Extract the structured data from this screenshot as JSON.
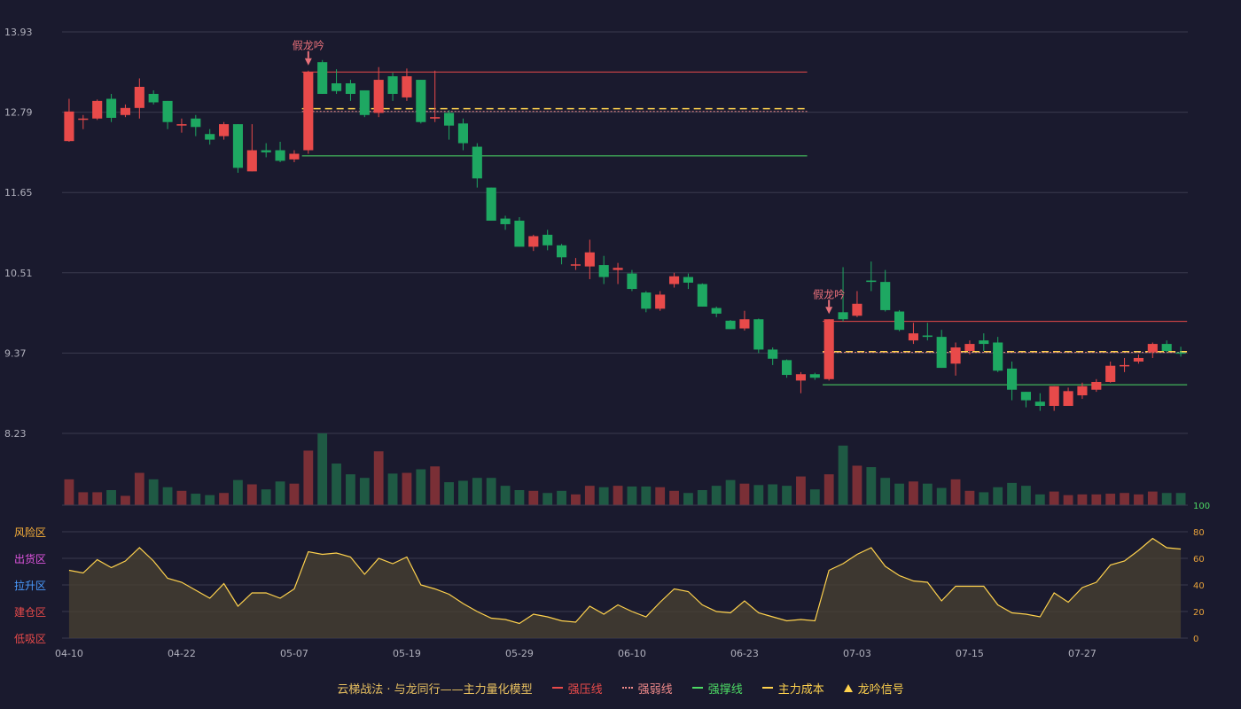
{
  "colors": {
    "bg": "#1a1a2e",
    "grid": "#3a3a4e",
    "up": "#e84a4a",
    "down": "#1ea862",
    "vol_up": "#7a2f36",
    "vol_down": "#1f5a44",
    "osc_line": "#ffd24d",
    "osc_fill": "#4a4232",
    "press": "#e84a4a",
    "weak": "#f08a8a",
    "support": "#4cd964",
    "cost": "#ffd24d",
    "signal": "#e8707a",
    "axis_text": "#b0b0bc"
  },
  "legend": {
    "title": "云梯战法 · 与龙同行——主力量化模型",
    "items": [
      {
        "label": "强压线",
        "style": "solid",
        "color": "#e84a4a"
      },
      {
        "label": "强弱线",
        "style": "dotted",
        "color": "#f08a8a"
      },
      {
        "label": "强撑线",
        "style": "solid",
        "color": "#4cd964"
      },
      {
        "label": "主力成本",
        "style": "dashed",
        "color": "#ffd24d"
      },
      {
        "label": "龙吟信号",
        "style": "triangle",
        "color": "#ffd24d"
      }
    ]
  },
  "chart_data": [
    {
      "type": "candlestick",
      "price_ticks": [
        "13.93",
        "12.79",
        "11.65",
        "10.51",
        "9.37",
        "8.23"
      ],
      "ylim": [
        8.23,
        13.93
      ],
      "x_labels": [
        {
          "i": 0,
          "label": "04-10"
        },
        {
          "i": 8,
          "label": "04-22"
        },
        {
          "i": 16,
          "label": "05-07"
        },
        {
          "i": 24,
          "label": "05-19"
        },
        {
          "i": 32,
          "label": "05-29"
        },
        {
          "i": 40,
          "label": "06-10"
        },
        {
          "i": 48,
          "label": "06-23"
        },
        {
          "i": 56,
          "label": "07-03"
        },
        {
          "i": 64,
          "label": "07-15"
        },
        {
          "i": 72,
          "label": "07-27"
        }
      ],
      "candles": [
        [
          12.38,
          12.8,
          12.37,
          12.98
        ],
        [
          12.7,
          12.7,
          12.55,
          12.75
        ],
        [
          12.7,
          12.95,
          12.68,
          12.97
        ],
        [
          12.98,
          12.71,
          12.65,
          13.05
        ],
        [
          12.75,
          12.85,
          12.72,
          12.9
        ],
        [
          12.85,
          13.15,
          12.7,
          13.27
        ],
        [
          13.05,
          12.93,
          12.9,
          13.1
        ],
        [
          12.95,
          12.65,
          12.55,
          12.95
        ],
        [
          12.6,
          12.62,
          12.5,
          12.7
        ],
        [
          12.7,
          12.58,
          12.45,
          12.75
        ],
        [
          12.48,
          12.4,
          12.33,
          12.55
        ],
        [
          12.45,
          12.62,
          12.4,
          12.65
        ],
        [
          12.62,
          12.0,
          11.93,
          12.62
        ],
        [
          11.95,
          12.25,
          11.95,
          12.62
        ],
        [
          12.25,
          12.22,
          12.15,
          12.35
        ],
        [
          12.25,
          12.1,
          12.08,
          12.37
        ],
        [
          12.12,
          12.2,
          12.08,
          12.25
        ],
        [
          12.25,
          13.36,
          12.2,
          13.38
        ],
        [
          13.5,
          13.05,
          13.05,
          13.53
        ],
        [
          13.2,
          13.09,
          13.05,
          13.4
        ],
        [
          13.2,
          13.05,
          12.95,
          13.25
        ],
        [
          13.1,
          12.75,
          12.72,
          13.1
        ],
        [
          12.78,
          13.25,
          12.72,
          13.43
        ],
        [
          13.3,
          13.05,
          12.95,
          13.35
        ],
        [
          13.0,
          13.3,
          12.95,
          13.41
        ],
        [
          13.25,
          12.65,
          12.63,
          13.25
        ],
        [
          12.7,
          12.72,
          12.65,
          13.38
        ],
        [
          12.78,
          12.6,
          12.4,
          12.82
        ],
        [
          12.63,
          12.35,
          12.25,
          12.7
        ],
        [
          12.3,
          11.85,
          11.72,
          12.35
        ],
        [
          11.72,
          11.25,
          11.25,
          11.72
        ],
        [
          11.28,
          11.2,
          11.12,
          11.32
        ],
        [
          11.25,
          10.88,
          10.88,
          11.3
        ],
        [
          10.88,
          11.03,
          10.82,
          11.05
        ],
        [
          11.05,
          10.9,
          10.83,
          11.12
        ],
        [
          10.9,
          10.73,
          10.63,
          10.92
        ],
        [
          10.62,
          10.63,
          10.55,
          10.72
        ],
        [
          10.6,
          10.8,
          10.42,
          10.98
        ],
        [
          10.62,
          10.45,
          10.35,
          10.75
        ],
        [
          10.55,
          10.58,
          10.35,
          10.65
        ],
        [
          10.5,
          10.28,
          10.25,
          10.55
        ],
        [
          10.23,
          10.0,
          9.95,
          10.25
        ],
        [
          10.0,
          10.2,
          9.97,
          10.25
        ],
        [
          10.35,
          10.46,
          10.3,
          10.51
        ],
        [
          10.45,
          10.37,
          10.28,
          10.5
        ],
        [
          10.35,
          10.03,
          10.03,
          10.36
        ],
        [
          10.01,
          9.93,
          9.88,
          10.03
        ],
        [
          9.83,
          9.71,
          9.71,
          9.84
        ],
        [
          9.72,
          9.85,
          9.69,
          9.97
        ],
        [
          9.85,
          9.42,
          9.37,
          9.86
        ],
        [
          9.42,
          9.29,
          9.2,
          9.45
        ],
        [
          9.27,
          9.06,
          9.02,
          9.28
        ],
        [
          8.98,
          9.07,
          8.8,
          9.1
        ],
        [
          9.07,
          9.02,
          8.99,
          9.09
        ],
        [
          9.0,
          9.85,
          8.98,
          9.85
        ],
        [
          9.95,
          9.85,
          9.82,
          10.59
        ],
        [
          9.9,
          10.07,
          9.88,
          10.25
        ],
        [
          10.4,
          10.38,
          10.25,
          10.67
        ],
        [
          10.38,
          9.98,
          9.96,
          10.55
        ],
        [
          9.96,
          9.7,
          9.68,
          9.98
        ],
        [
          9.55,
          9.65,
          9.5,
          9.8
        ],
        [
          9.62,
          9.6,
          9.55,
          9.8
        ],
        [
          9.6,
          9.16,
          9.16,
          9.7
        ],
        [
          9.22,
          9.45,
          9.05,
          9.52
        ],
        [
          9.4,
          9.5,
          9.35,
          9.55
        ],
        [
          9.55,
          9.5,
          9.4,
          9.65
        ],
        [
          9.52,
          9.12,
          9.1,
          9.6
        ],
        [
          9.15,
          8.85,
          8.7,
          9.25
        ],
        [
          8.82,
          8.7,
          8.6,
          8.82
        ],
        [
          8.68,
          8.62,
          8.55,
          8.8
        ],
        [
          8.62,
          8.9,
          8.55,
          8.9
        ],
        [
          8.62,
          8.83,
          8.62,
          8.88
        ],
        [
          8.77,
          8.9,
          8.72,
          8.95
        ],
        [
          8.85,
          8.96,
          8.82,
          9.0
        ],
        [
          8.96,
          9.19,
          8.95,
          9.25
        ],
        [
          9.2,
          9.2,
          9.1,
          9.3
        ],
        [
          9.25,
          9.3,
          9.22,
          9.35
        ],
        [
          9.38,
          9.5,
          9.3,
          9.52
        ],
        [
          9.5,
          9.4,
          9.38,
          9.55
        ],
        [
          9.38,
          9.37,
          9.32,
          9.46
        ]
      ],
      "signals": [
        {
          "i": 17,
          "label": "假龙吟"
        },
        {
          "i": 54,
          "label": "假龙吟"
        }
      ],
      "levels": [
        {
          "role": "press",
          "from": 17,
          "to": 52,
          "value": 13.36
        },
        {
          "role": "cost",
          "from": 17,
          "to": 52,
          "value": 12.84
        },
        {
          "role": "weak",
          "from": 17,
          "to": 52,
          "value": 12.8
        },
        {
          "role": "support",
          "from": 17,
          "to": 52,
          "value": 12.17
        },
        {
          "role": "press",
          "from": 54,
          "to": 79,
          "value": 9.82
        },
        {
          "role": "cost",
          "from": 54,
          "to": 79,
          "value": 9.39
        },
        {
          "role": "weak",
          "from": 54,
          "to": 79,
          "value": 9.38
        },
        {
          "role": "support",
          "from": 54,
          "to": 79,
          "value": 8.92
        }
      ]
    },
    {
      "type": "bar",
      "title": "",
      "volume": [
        36,
        18,
        18,
        21,
        13,
        45,
        36,
        25,
        20,
        16,
        14,
        17,
        35,
        29,
        22,
        33,
        30,
        76,
        100,
        58,
        43,
        38,
        75,
        44,
        45,
        50,
        54,
        32,
        34,
        38,
        38,
        27,
        21,
        20,
        17,
        20,
        15,
        27,
        25,
        27,
        26,
        26,
        25,
        20,
        17,
        21,
        27,
        35,
        30,
        28,
        29,
        27,
        40,
        22,
        43,
        83,
        55,
        53,
        38,
        30,
        33,
        30,
        24,
        36,
        20,
        18,
        25,
        31,
        27,
        15,
        19,
        14,
        15,
        15,
        16,
        17,
        15,
        19,
        17,
        17
      ],
      "ylim": [
        0,
        100
      ]
    },
    {
      "type": "area",
      "osc": [
        51,
        49,
        59,
        53,
        58,
        68,
        58,
        45,
        42,
        36,
        30,
        41,
        24,
        34,
        34,
        30,
        37,
        65,
        63,
        64,
        61,
        48,
        60,
        56,
        61,
        40,
        37,
        33,
        26,
        20,
        15,
        14,
        11,
        18,
        16,
        13,
        12,
        24,
        18,
        25,
        20,
        16,
        27,
        37,
        35,
        25,
        20,
        19,
        28,
        19,
        16,
        13,
        14,
        13,
        51,
        56,
        63,
        68,
        54,
        47,
        43,
        42,
        28,
        39,
        39,
        39,
        25,
        19,
        18,
        16,
        34,
        27,
        38,
        42,
        55,
        58,
        66,
        75,
        68,
        67
      ],
      "ylim": [
        0,
        100
      ],
      "y_ticks": [
        "0",
        "20",
        "40",
        "60",
        "80",
        "100"
      ],
      "zones": [
        {
          "label": "风险区",
          "color": "#ffb43a"
        },
        {
          "label": "出货区",
          "color": "#e055e0"
        },
        {
          "label": "拉升区",
          "color": "#4a9cff"
        },
        {
          "label": "建仓区",
          "color": "#e84a4a"
        },
        {
          "label": "低吸区",
          "color": "#e84a4a"
        }
      ]
    }
  ]
}
